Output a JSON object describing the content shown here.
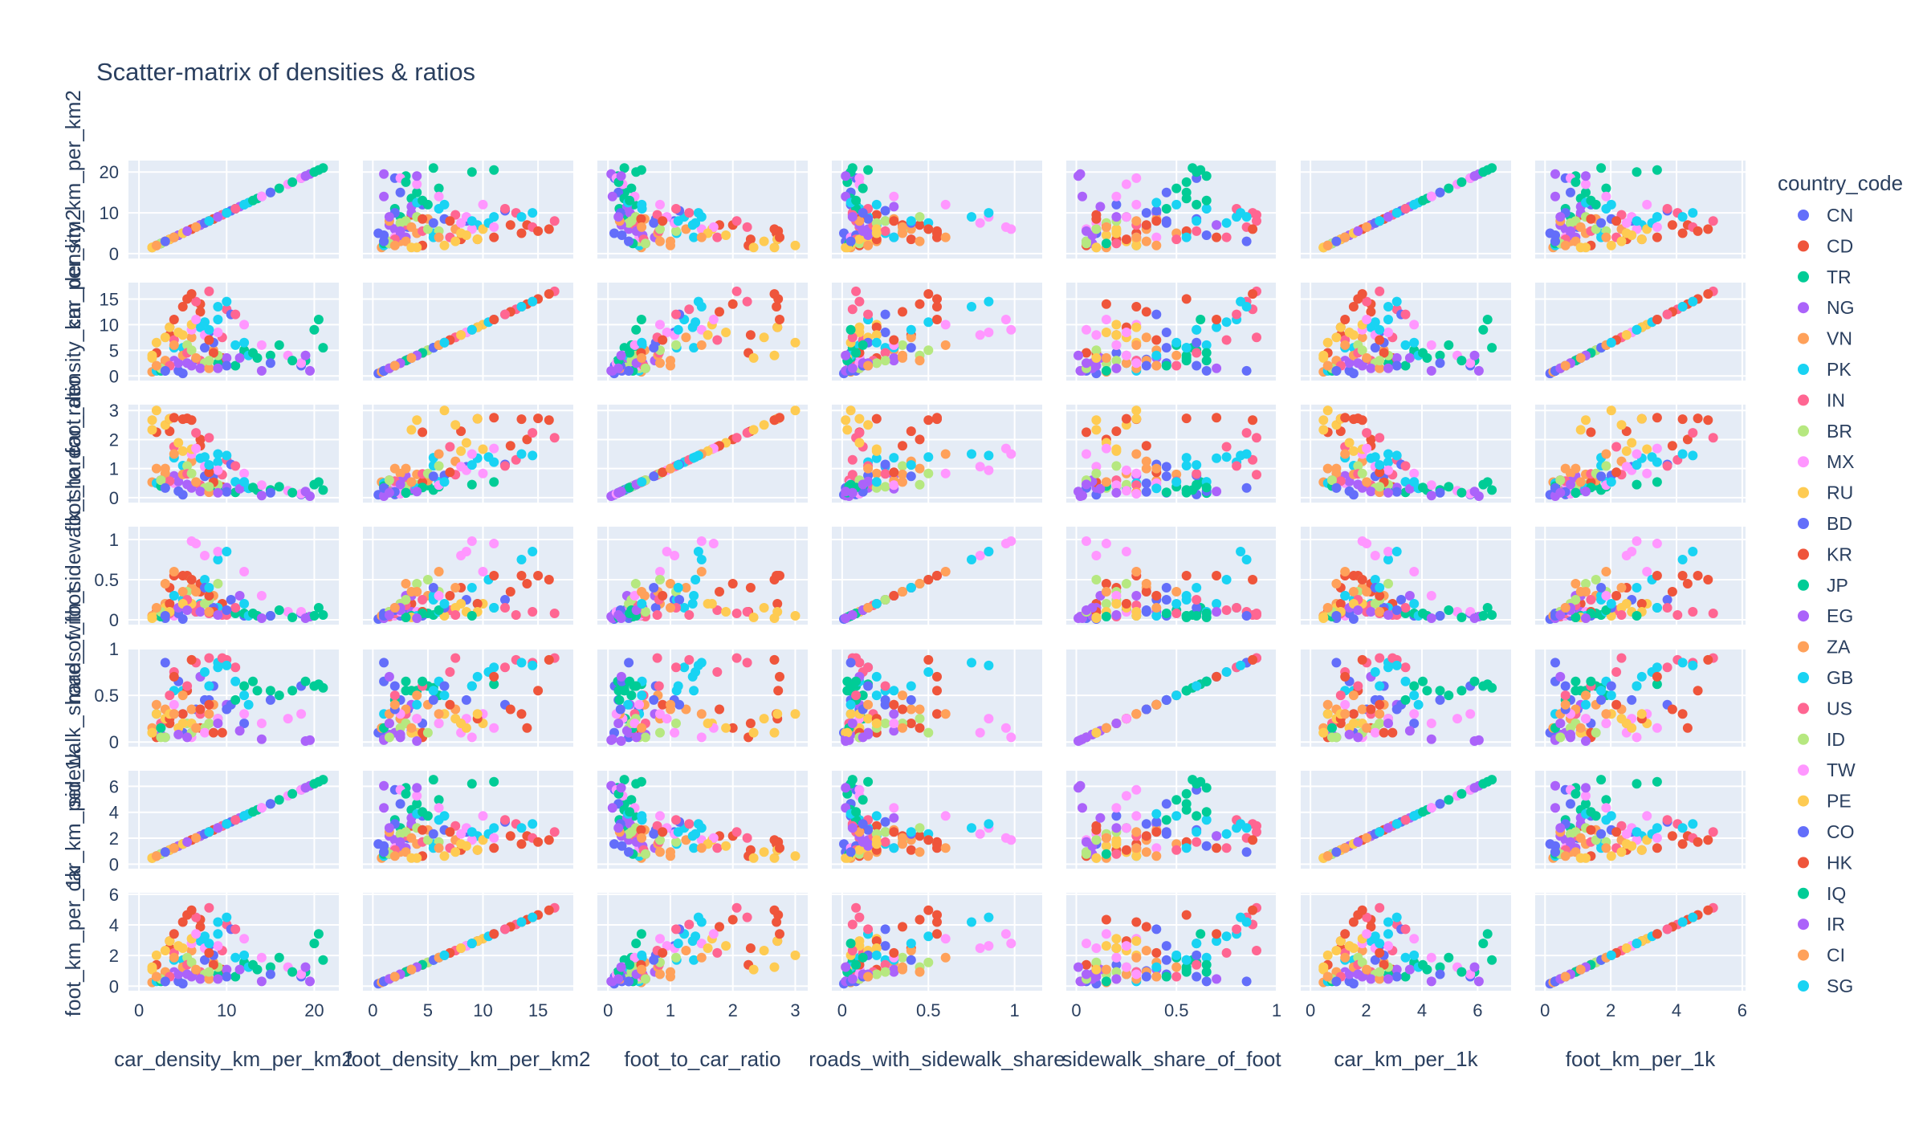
{
  "chart_data": {
    "type": "scatter",
    "title": "Scatter-matrix of densities & ratios",
    "dimensions": [
      {
        "name": "car_density_km_per_km2",
        "range": [
          -1.2,
          22.8
        ],
        "ticks": [
          0,
          10,
          20
        ],
        "ytick_labels": [
          "0",
          "10",
          "20"
        ],
        "xtick_labels": [
          "0",
          "10",
          "20"
        ]
      },
      {
        "name": "foot_density_km_per_km2",
        "range": [
          -0.9,
          18.2
        ],
        "ticks": [
          0,
          5,
          10,
          15
        ],
        "ytick_labels": [
          "0",
          "5",
          "10",
          "15"
        ],
        "xtick_labels": [
          "0",
          "5",
          "10",
          "15"
        ]
      },
      {
        "name": "foot_to_car_ratio",
        "range": [
          -0.17,
          3.2
        ],
        "ticks": [
          0,
          1,
          2,
          3
        ],
        "ytick_labels": [
          "0",
          "1",
          "2",
          "3"
        ],
        "xtick_labels": [
          "0",
          "1",
          "2",
          "3"
        ]
      },
      {
        "name": "roads_with_sidewalk_share",
        "range": [
          -0.06,
          1.16
        ],
        "ticks": [
          0,
          0.5,
          1
        ],
        "ytick_labels": [
          "0",
          "0.5",
          "1"
        ],
        "xtick_labels": [
          "0",
          "0.5",
          "1"
        ]
      },
      {
        "name": "sidewalk_share_of_foot",
        "range": [
          -0.05,
          1.0
        ],
        "ticks": [
          0,
          0.5,
          1
        ],
        "ytick_labels": [
          "0",
          "0.5",
          "1"
        ],
        "xtick_labels": [
          "0",
          "0.5",
          "1"
        ]
      },
      {
        "name": "car_km_per_1k",
        "range": [
          -0.35,
          7.2
        ],
        "ticks": [
          0,
          2,
          4,
          6
        ],
        "ytick_labels": [
          "0",
          "2",
          "4",
          "6"
        ],
        "xtick_labels": [
          "0",
          "2",
          "4",
          "6"
        ]
      },
      {
        "name": "foot_km_per_1k",
        "range": [
          -0.3,
          6.1
        ],
        "ticks": [
          0,
          2,
          4,
          6
        ],
        "ytick_labels": [
          "0",
          "2",
          "4",
          "6"
        ],
        "xtick_labels": [
          "0",
          "2",
          "4",
          "6"
        ]
      }
    ],
    "legend": {
      "title": "country_code",
      "placement": "right",
      "entries": [
        {
          "name": "CN",
          "color": "#636efa"
        },
        {
          "name": "CD",
          "color": "#EF553B"
        },
        {
          "name": "TR",
          "color": "#00cc96"
        },
        {
          "name": "NG",
          "color": "#ab63fa"
        },
        {
          "name": "VN",
          "color": "#FFA15A"
        },
        {
          "name": "PK",
          "color": "#19d3f3"
        },
        {
          "name": "IN",
          "color": "#FF6692"
        },
        {
          "name": "BR",
          "color": "#B6E880"
        },
        {
          "name": "MX",
          "color": "#FF97FF"
        },
        {
          "name": "RU",
          "color": "#FECB52"
        },
        {
          "name": "BD",
          "color": "#636efa"
        },
        {
          "name": "KR",
          "color": "#EF553B"
        },
        {
          "name": "JP",
          "color": "#00cc96"
        },
        {
          "name": "EG",
          "color": "#ab63fa"
        },
        {
          "name": "ZA",
          "color": "#FFA15A"
        },
        {
          "name": "GB",
          "color": "#19d3f3"
        },
        {
          "name": "US",
          "color": "#FF6692"
        },
        {
          "name": "ID",
          "color": "#B6E880"
        },
        {
          "name": "TW",
          "color": "#FF97FF"
        },
        {
          "name": "PE",
          "color": "#FECB52"
        },
        {
          "name": "CO",
          "color": "#636efa"
        },
        {
          "name": "HK",
          "color": "#EF553B"
        },
        {
          "name": "IQ",
          "color": "#00cc96"
        },
        {
          "name": "IR",
          "color": "#ab63fa"
        },
        {
          "name": "CI",
          "color": "#FFA15A"
        },
        {
          "name": "SG",
          "color": "#19d3f3"
        }
      ]
    },
    "grid": true,
    "panel_background": "#E5ECF6",
    "gridline_color": "#ffffff",
    "points": [
      {
        "code": "CN",
        "car": 6.5,
        "foot": 3.2,
        "sw": 0.1,
        "swf": 0.35
      },
      {
        "code": "CN",
        "car": 12.0,
        "foot": 4.5,
        "sw": 0.05,
        "swf": 0.2
      },
      {
        "code": "CN",
        "car": 3.0,
        "foot": 1.0,
        "sw": 0.02,
        "swf": 0.05
      },
      {
        "code": "CN",
        "car": 18.5,
        "foot": 2.0,
        "sw": 0.08,
        "swf": 0.6
      },
      {
        "code": "CN",
        "car": 8.0,
        "foot": 8.5,
        "sw": 0.25,
        "swf": 0.45
      },
      {
        "code": "CN",
        "car": 5.0,
        "foot": 0.5,
        "sw": 0.01,
        "swf": 0.1
      },
      {
        "code": "CD",
        "car": 5.0,
        "foot": 13.5,
        "sw": 0.55,
        "swf": 0.3
      },
      {
        "code": "CD",
        "car": 3.5,
        "foot": 8.0,
        "sw": 0.4,
        "swf": 0.2
      },
      {
        "code": "CD",
        "car": 7.0,
        "foot": 14.0,
        "sw": 0.45,
        "swf": 0.15
      },
      {
        "code": "CD",
        "car": 2.0,
        "foot": 4.5,
        "sw": 0.1,
        "swf": 0.05
      },
      {
        "code": "CD",
        "car": 9.5,
        "foot": 3.5,
        "sw": 0.2,
        "swf": 0.1
      },
      {
        "code": "TR",
        "car": 12.0,
        "foot": 5.0,
        "sw": 0.08,
        "swf": 0.6
      },
      {
        "code": "TR",
        "car": 15.0,
        "foot": 4.0,
        "sw": 0.05,
        "swf": 0.55
      },
      {
        "code": "TR",
        "car": 19.0,
        "foot": 3.0,
        "sw": 0.03,
        "swf": 0.65
      },
      {
        "code": "TR",
        "car": 20.5,
        "foot": 11.0,
        "sw": 0.15,
        "swf": 0.62
      },
      {
        "code": "TR",
        "car": 21.0,
        "foot": 5.5,
        "sw": 0.06,
        "swf": 0.58
      },
      {
        "code": "TR",
        "car": 9.0,
        "foot": 2.5,
        "sw": 0.12,
        "swf": 0.25
      },
      {
        "code": "NG",
        "car": 4.0,
        "foot": 3.0,
        "sw": 0.3,
        "swf": 0.3
      },
      {
        "code": "NG",
        "car": 6.0,
        "foot": 2.0,
        "sw": 0.15,
        "swf": 0.1
      },
      {
        "code": "NG",
        "car": 19.5,
        "foot": 1.0,
        "sw": 0.04,
        "swf": 0.02
      },
      {
        "code": "NG",
        "car": 2.5,
        "foot": 1.5,
        "sw": 0.05,
        "swf": 0.08
      },
      {
        "code": "NG",
        "car": 10.0,
        "foot": 3.5,
        "sw": 0.1,
        "swf": 0.4
      },
      {
        "code": "VN",
        "car": 6.0,
        "foot": 7.5,
        "sw": 0.4,
        "swf": 0.35
      },
      {
        "code": "VN",
        "car": 3.0,
        "foot": 2.5,
        "sw": 0.2,
        "swf": 0.25
      },
      {
        "code": "VN",
        "car": 8.5,
        "foot": 5.0,
        "sw": 0.3,
        "swf": 0.4
      },
      {
        "code": "VN",
        "car": 1.5,
        "foot": 0.8,
        "sw": 0.05,
        "swf": 0.15
      },
      {
        "code": "PK",
        "car": 9.0,
        "foot": 11.0,
        "sw": 0.15,
        "swf": 0.8
      },
      {
        "code": "PK",
        "car": 7.0,
        "foot": 9.5,
        "sw": 0.2,
        "swf": 0.7
      },
      {
        "code": "PK",
        "car": 5.0,
        "foot": 5.5,
        "sw": 0.25,
        "swf": 0.55
      },
      {
        "code": "PK",
        "car": 11.0,
        "foot": 6.0,
        "sw": 0.1,
        "swf": 0.65
      },
      {
        "code": "PK",
        "car": 2.0,
        "foot": 1.0,
        "sw": 0.05,
        "swf": 0.3
      },
      {
        "code": "IN",
        "car": 8.0,
        "foot": 16.5,
        "sw": 0.08,
        "swf": 0.9
      },
      {
        "code": "IN",
        "car": 6.5,
        "foot": 14.5,
        "sw": 0.1,
        "swf": 0.85
      },
      {
        "code": "IN",
        "car": 10.0,
        "foot": 13.0,
        "sw": 0.06,
        "swf": 0.88
      },
      {
        "code": "IN",
        "car": 4.0,
        "foot": 7.0,
        "sw": 0.12,
        "swf": 0.75
      },
      {
        "code": "IN",
        "car": 2.5,
        "foot": 1.5,
        "sw": 0.04,
        "swf": 0.2
      },
      {
        "code": "IN",
        "car": 7.0,
        "foot": 3.0,
        "sw": 0.18,
        "swf": 0.3
      },
      {
        "code": "BR",
        "car": 5.5,
        "foot": 6.0,
        "sw": 0.35,
        "swf": 0.2
      },
      {
        "code": "BR",
        "car": 7.5,
        "foot": 2.5,
        "sw": 0.2,
        "swf": 0.15
      },
      {
        "code": "BR",
        "car": 3.0,
        "foot": 1.5,
        "sw": 0.1,
        "swf": 0.05
      },
      {
        "code": "BR",
        "car": 9.0,
        "foot": 4.0,
        "sw": 0.45,
        "swf": 0.25
      },
      {
        "code": "MX",
        "car": 6.0,
        "foot": 9.0,
        "sw": 0.98,
        "swf": 0.05
      },
      {
        "code": "MX",
        "car": 7.5,
        "foot": 8.0,
        "sw": 0.8,
        "swf": 0.1
      },
      {
        "code": "MX",
        "car": 12.0,
        "foot": 10.0,
        "sw": 0.6,
        "swf": 0.3
      },
      {
        "code": "MX",
        "car": 17.0,
        "foot": 4.0,
        "sw": 0.1,
        "swf": 0.25
      },
      {
        "code": "MX",
        "car": 4.0,
        "foot": 2.0,
        "sw": 0.05,
        "swf": 0.4
      },
      {
        "code": "RU",
        "car": 3.0,
        "foot": 7.5,
        "sw": 0.15,
        "swf": 0.25
      },
      {
        "code": "RU",
        "car": 2.0,
        "foot": 6.5,
        "sw": 0.05,
        "swf": 0.3
      },
      {
        "code": "RU",
        "car": 4.5,
        "foot": 8.5,
        "sw": 0.1,
        "swf": 0.15
      },
      {
        "code": "RU",
        "car": 1.5,
        "foot": 4.0,
        "sw": 0.02,
        "swf": 0.1
      },
      {
        "code": "RU",
        "car": 6.0,
        "foot": 10.0,
        "sw": 0.2,
        "swf": 0.2
      },
      {
        "code": "BD",
        "car": 10.5,
        "foot": 12.0,
        "sw": 0.25,
        "swf": 0.4
      },
      {
        "code": "BD",
        "car": 8.5,
        "foot": 6.5,
        "sw": 0.15,
        "swf": 0.6
      },
      {
        "code": "BD",
        "car": 15.0,
        "foot": 2.5,
        "sw": 0.05,
        "swf": 0.45
      },
      {
        "code": "BD",
        "car": 4.5,
        "foot": 1.0,
        "sw": 0.08,
        "swf": 0.65
      },
      {
        "code": "KR",
        "car": 5.5,
        "foot": 15.0,
        "sw": 0.55,
        "swf": 0.55
      },
      {
        "code": "KR",
        "car": 7.0,
        "foot": 12.5,
        "sw": 0.35,
        "swf": 0.35
      },
      {
        "code": "KR",
        "car": 3.5,
        "foot": 9.5,
        "sw": 0.2,
        "swf": 0.25
      },
      {
        "code": "KR",
        "car": 8.5,
        "foot": 4.5,
        "sw": 0.1,
        "swf": 0.1
      },
      {
        "code": "JP",
        "car": 11.0,
        "foot": 2.0,
        "sw": 0.08,
        "swf": 0.45
      },
      {
        "code": "JP",
        "car": 13.5,
        "foot": 3.5,
        "sw": 0.05,
        "swf": 0.55
      },
      {
        "code": "JP",
        "car": 16.0,
        "foot": 6.0,
        "sw": 0.12,
        "swf": 0.5
      },
      {
        "code": "JP",
        "car": 2.5,
        "foot": 1.0,
        "sw": 0.04,
        "swf": 0.15
      },
      {
        "code": "EG",
        "car": 4.5,
        "foot": 2.5,
        "sw": 0.15,
        "swf": 0.08
      },
      {
        "code": "EG",
        "car": 11.5,
        "foot": 3.5,
        "sw": 0.3,
        "swf": 0.12
      },
      {
        "code": "EG",
        "car": 14.0,
        "foot": 1.0,
        "sw": 0.02,
        "swf": 0.03
      },
      {
        "code": "EG",
        "car": 7.0,
        "foot": 1.5,
        "sw": 0.1,
        "swf": 0.7
      },
      {
        "code": "ZA",
        "car": 3.0,
        "foot": 3.0,
        "sw": 0.45,
        "swf": 0.35
      },
      {
        "code": "ZA",
        "car": 5.0,
        "foot": 4.0,
        "sw": 0.35,
        "swf": 0.5
      },
      {
        "code": "ZA",
        "car": 8.0,
        "foot": 1.5,
        "sw": 0.1,
        "swf": 0.3
      },
      {
        "code": "GB",
        "car": 9.0,
        "foot": 13.5,
        "sw": 0.75,
        "swf": 0.85
      },
      {
        "code": "GB",
        "car": 7.5,
        "foot": 10.5,
        "sw": 0.5,
        "swf": 0.75
      },
      {
        "code": "GB",
        "car": 4.0,
        "foot": 5.5,
        "sw": 0.3,
        "swf": 0.55
      },
      {
        "code": "GB",
        "car": 12.5,
        "foot": 4.0,
        "sw": 0.05,
        "swf": 0.4
      },
      {
        "code": "US",
        "car": 9.5,
        "foot": 7.5,
        "sw": 0.06,
        "swf": 0.9
      },
      {
        "code": "US",
        "car": 5.5,
        "foot": 4.5,
        "sw": 0.25,
        "swf": 0.6
      },
      {
        "code": "US",
        "car": 11.0,
        "foot": 12.0,
        "sw": 0.15,
        "swf": 0.8
      },
      {
        "code": "US",
        "car": 3.5,
        "foot": 2.0,
        "sw": 0.08,
        "swf": 0.5
      },
      {
        "code": "ID",
        "car": 6.0,
        "foot": 5.0,
        "sw": 0.5,
        "swf": 0.1
      },
      {
        "code": "ID",
        "car": 8.0,
        "foot": 3.0,
        "sw": 0.25,
        "swf": 0.2
      },
      {
        "code": "ID",
        "car": 2.5,
        "foot": 1.5,
        "sw": 0.1,
        "swf": 0.05
      },
      {
        "code": "TW",
        "car": 6.5,
        "foot": 11.0,
        "sw": 0.95,
        "swf": 0.15
      },
      {
        "code": "TW",
        "car": 9.0,
        "foot": 8.5,
        "sw": 0.85,
        "swf": 0.25
      },
      {
        "code": "TW",
        "car": 14.0,
        "foot": 6.0,
        "sw": 0.3,
        "swf": 0.2
      },
      {
        "code": "TW",
        "car": 18.5,
        "foot": 2.5,
        "sw": 0.1,
        "swf": 0.3
      },
      {
        "code": "PE",
        "car": 3.5,
        "foot": 9.5,
        "sw": 0.1,
        "swf": 0.3
      },
      {
        "code": "PE",
        "car": 5.0,
        "foot": 8.0,
        "sw": 0.2,
        "swf": 0.2
      },
      {
        "code": "PE",
        "car": 1.5,
        "foot": 3.5,
        "sw": 0.03,
        "swf": 0.1
      },
      {
        "code": "CO",
        "car": 7.5,
        "foot": 5.5,
        "sw": 0.4,
        "swf": 0.45
      },
      {
        "code": "CO",
        "car": 10.0,
        "foot": 2.0,
        "sw": 0.12,
        "swf": 0.35
      },
      {
        "code": "CO",
        "car": 3.0,
        "foot": 1.0,
        "sw": 0.05,
        "swf": 0.85
      },
      {
        "code": "HK",
        "car": 6.0,
        "foot": 16.0,
        "sw": 0.5,
        "swf": 0.88
      },
      {
        "code": "HK",
        "car": 4.0,
        "foot": 11.0,
        "sw": 0.55,
        "swf": 0.7
      },
      {
        "code": "HK",
        "car": 8.0,
        "foot": 7.0,
        "sw": 0.3,
        "swf": 0.4
      },
      {
        "code": "IQ",
        "car": 20.0,
        "foot": 9.0,
        "sw": 0.05,
        "swf": 0.6
      },
      {
        "code": "IQ",
        "car": 17.5,
        "foot": 3.0,
        "sw": 0.03,
        "swf": 0.55
      },
      {
        "code": "IQ",
        "car": 13.0,
        "foot": 4.5,
        "sw": 0.08,
        "swf": 0.65
      },
      {
        "code": "IR",
        "car": 5.5,
        "foot": 2.5,
        "sw": 0.12,
        "swf": 0.05
      },
      {
        "code": "IR",
        "car": 9.0,
        "foot": 1.5,
        "sw": 0.06,
        "swf": 0.2
      },
      {
        "code": "IR",
        "car": 19.0,
        "foot": 4.0,
        "sw": 0.02,
        "swf": 0.01
      },
      {
        "code": "CI",
        "car": 4.0,
        "foot": 6.0,
        "sw": 0.6,
        "swf": 0.3
      },
      {
        "code": "CI",
        "car": 6.5,
        "foot": 3.5,
        "sw": 0.35,
        "swf": 0.15
      },
      {
        "code": "CI",
        "car": 2.0,
        "foot": 2.0,
        "sw": 0.15,
        "swf": 0.4
      },
      {
        "code": "SG",
        "car": 10.0,
        "foot": 14.5,
        "sw": 0.85,
        "swf": 0.82
      },
      {
        "code": "SG",
        "car": 8.0,
        "foot": 9.0,
        "sw": 0.4,
        "swf": 0.6
      },
      {
        "code": "SG",
        "car": 12.0,
        "foot": 6.5,
        "sw": 0.2,
        "swf": 0.5
      }
    ]
  }
}
